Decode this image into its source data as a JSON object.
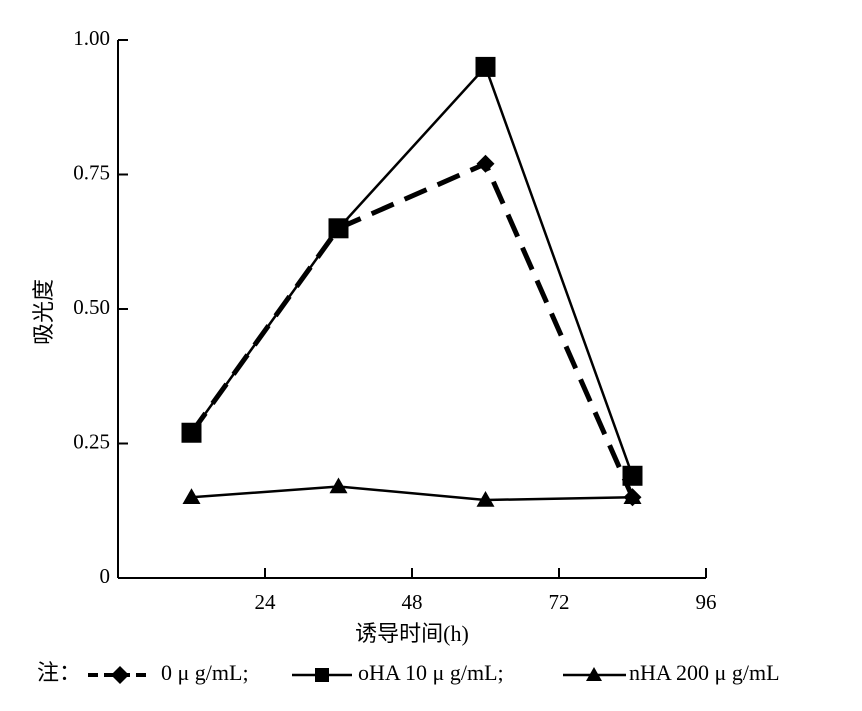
{
  "chart_data": {
    "type": "line",
    "xlabel": "诱导时间(h)",
    "ylabel": "吸光度",
    "xlim": [
      0,
      96
    ],
    "ylim": [
      0,
      1.0
    ],
    "x_ticks": [
      24,
      48,
      72,
      96
    ],
    "x_tick_labels": [
      "24",
      "48",
      "72",
      "96"
    ],
    "y_ticks": [
      0,
      0.25,
      0.5,
      0.75,
      1.0
    ],
    "y_tick_labels": [
      "0",
      "0.25",
      "0.50",
      "0.75",
      "1.00"
    ],
    "x": [
      12,
      36,
      60,
      84
    ],
    "grid": false,
    "legend_placement": "bottom",
    "legend_prefix": "注：",
    "series": [
      {
        "name": "0 μ g/mL;",
        "values": [
          0.27,
          0.65,
          0.77,
          0.15
        ],
        "marker": "diamond",
        "line_style": "dashed",
        "color": "#000000"
      },
      {
        "name": "oHA 10 μ g/mL;",
        "values": [
          0.27,
          0.65,
          0.95,
          0.19
        ],
        "marker": "square",
        "line_style": "solid",
        "color": "#000000"
      },
      {
        "name": "nHA 200 μ g/mL",
        "values": [
          0.15,
          0.17,
          0.145,
          0.15
        ],
        "marker": "triangle",
        "line_style": "solid",
        "color": "#000000"
      }
    ]
  }
}
